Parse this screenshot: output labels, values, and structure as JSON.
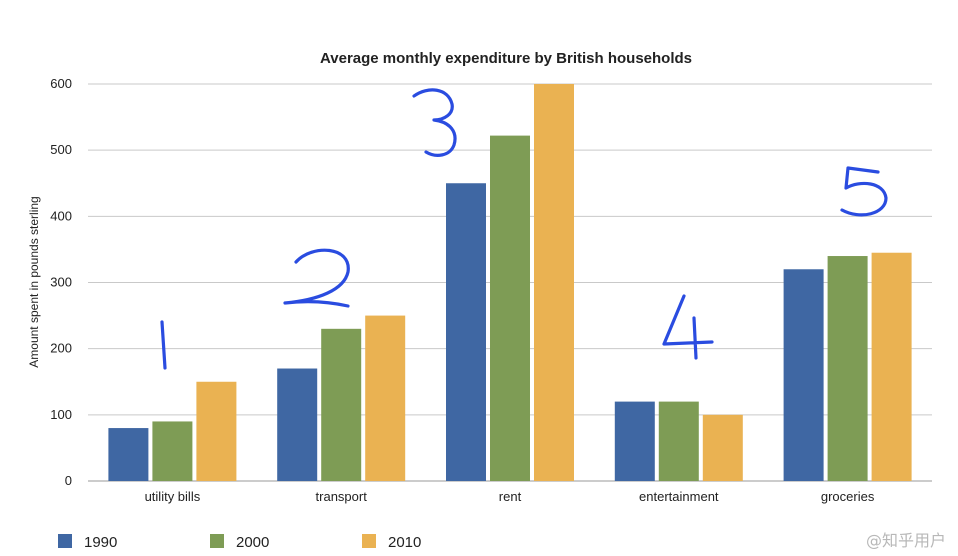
{
  "chart_data": {
    "type": "bar",
    "title": "Average monthly expenditure by British households",
    "ylabel": "Amount spent in pounds sterling",
    "xlabel": "",
    "ylim": [
      0,
      600
    ],
    "yticks": [
      "0",
      "100",
      "200",
      "300",
      "400",
      "500",
      "600"
    ],
    "grid": true,
    "legend_position": "bottom-left",
    "categories": [
      "utility bills",
      "transport",
      "rent",
      "entertainment",
      "groceries"
    ],
    "series": [
      {
        "name": "1990",
        "color": "#3f67a3",
        "values": [
          80,
          170,
          450,
          120,
          320
        ]
      },
      {
        "name": "2000",
        "color": "#7e9c55",
        "values": [
          90,
          230,
          522,
          120,
          340
        ]
      },
      {
        "name": "2010",
        "color": "#eab252",
        "values": [
          150,
          250,
          600,
          100,
          345
        ]
      }
    ],
    "annotations": [
      "1",
      "2",
      "3",
      "4",
      "5"
    ]
  },
  "watermark": "@知乎用户"
}
